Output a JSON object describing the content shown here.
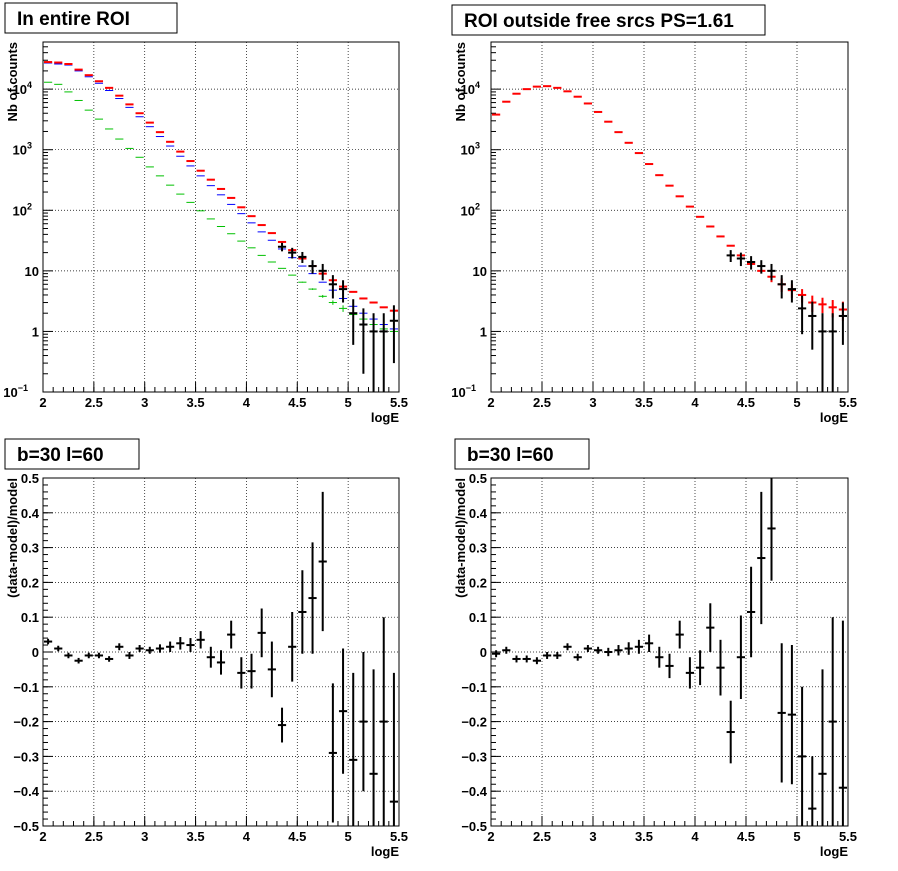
{
  "chart_data": [
    {
      "id": "pad1",
      "type": "scatter",
      "title": "In entire ROI",
      "xlabel": "logE",
      "ylabel": "Nb of counts",
      "xlim": [
        2,
        5.5
      ],
      "ylim": [
        0.1,
        60000
      ],
      "yscale": "log",
      "grid": true,
      "x_ticks": [
        "2",
        "2.5",
        "3",
        "3.5",
        "4",
        "4.5",
        "5",
        "5.5"
      ],
      "y_ticks": [
        {
          "value": 0.1,
          "mantissa": "10",
          "exp": "−1"
        },
        {
          "value": 1,
          "mantissa": "1",
          "exp": ""
        },
        {
          "value": 10,
          "mantissa": "10",
          "exp": ""
        },
        {
          "value": 100,
          "mantissa": "10",
          "exp": "2"
        },
        {
          "value": 1000,
          "mantissa": "10",
          "exp": "3"
        },
        {
          "value": 10000,
          "mantissa": "10",
          "exp": "4"
        }
      ],
      "series": [
        {
          "color": "#00c000",
          "x": [
            2.05,
            2.15,
            2.25,
            2.35,
            2.45,
            2.55,
            2.65,
            2.75,
            2.85,
            2.95,
            3.05,
            3.15,
            3.25,
            3.35,
            3.45,
            3.55,
            3.65,
            3.75,
            3.85,
            3.95,
            4.05,
            4.15,
            4.25,
            4.35,
            4.45,
            4.55,
            4.65,
            4.75,
            4.85,
            4.95,
            5.05,
            5.15,
            5.25,
            5.35,
            5.45
          ],
          "y": [
            13000,
            12000,
            9000,
            6500,
            4500,
            3200,
            2200,
            1500,
            1050,
            750,
            520,
            370,
            260,
            185,
            135,
            98,
            72,
            54,
            41,
            31,
            24,
            18,
            14,
            11,
            8.5,
            6.5,
            5,
            3.8,
            3,
            2.4,
            1.9,
            1.6,
            1.3,
            1.1,
            1.0
          ],
          "err": [
            0,
            0,
            0,
            0,
            0,
            0,
            0,
            0,
            0,
            0,
            0,
            0,
            0,
            0,
            0,
            0,
            0,
            0,
            0,
            0,
            0,
            0,
            0,
            0,
            0.1,
            0.12,
            0.15,
            0.2,
            0.25,
            0.3,
            0.35,
            0.4,
            0.45,
            0.5,
            0.55
          ]
        },
        {
          "color": "#0000ff",
          "x": [
            2.05,
            2.15,
            2.25,
            2.35,
            2.45,
            2.55,
            2.65,
            2.75,
            2.85,
            2.95,
            3.05,
            3.15,
            3.25,
            3.35,
            3.45,
            3.55,
            3.65,
            3.75,
            3.85,
            3.95,
            4.05,
            4.15,
            4.25,
            4.35,
            4.45,
            4.55,
            4.65,
            4.75,
            4.85,
            4.95,
            5.05,
            5.15,
            5.25,
            5.35,
            5.45
          ],
          "y": [
            27000,
            26000,
            25000,
            20000,
            16000,
            12500,
            9500,
            7000,
            5000,
            3500,
            2400,
            1650,
            1150,
            780,
            540,
            370,
            255,
            180,
            125,
            88,
            62,
            44,
            32,
            23,
            16.5,
            12,
            9,
            6.5,
            4.8,
            3.5,
            2.6,
            2.0,
            1.6,
            1.3,
            1.1
          ],
          "err": [
            0,
            0,
            0,
            0,
            0,
            0,
            0,
            0,
            0,
            0,
            0,
            0,
            0,
            0,
            0,
            0,
            0,
            0,
            0,
            0,
            0,
            0,
            0,
            0,
            0,
            0,
            0,
            0,
            0,
            0.15,
            0.2,
            0.25,
            0.3,
            0.35,
            0.4
          ]
        },
        {
          "color": "#ff0000",
          "x": [
            2.05,
            2.15,
            2.25,
            2.35,
            2.45,
            2.55,
            2.65,
            2.75,
            2.85,
            2.95,
            3.05,
            3.15,
            3.25,
            3.35,
            3.45,
            3.55,
            3.65,
            3.75,
            3.85,
            3.95,
            4.05,
            4.15,
            4.25,
            4.35,
            4.45,
            4.55,
            4.65,
            4.75,
            4.85,
            4.95,
            5.05,
            5.15,
            5.25,
            5.35,
            5.45
          ],
          "y": [
            28000,
            27500,
            26000,
            21000,
            17000,
            13500,
            10500,
            7800,
            5600,
            4000,
            2800,
            1950,
            1350,
            930,
            650,
            450,
            320,
            225,
            160,
            112,
            80,
            57,
            42,
            30,
            22,
            16,
            12,
            9,
            7,
            5.5,
            4.5,
            3.5,
            3,
            2.5,
            2.2
          ],
          "err": [
            0,
            0,
            0,
            0,
            0,
            0,
            0,
            0,
            0,
            0,
            0,
            0,
            0,
            0,
            0,
            0,
            0,
            0,
            0,
            0,
            0,
            0,
            0,
            0,
            0,
            0,
            0,
            0,
            0,
            0,
            0,
            0,
            0,
            0,
            0
          ]
        },
        {
          "color": "#000000",
          "x": [
            4.35,
            4.45,
            4.55,
            4.65,
            4.75,
            4.85,
            4.95,
            5.05,
            5.15,
            5.25,
            5.35,
            5.45
          ],
          "y": [
            25,
            20,
            17,
            12,
            10,
            6,
            5,
            2,
            1.3,
            1,
            1,
            1.5
          ],
          "err": [
            4,
            4,
            3.5,
            3,
            3,
            2.5,
            2,
            1.4,
            1.1,
            1,
            1,
            1.2
          ]
        }
      ]
    },
    {
      "id": "pad2",
      "type": "scatter",
      "title": "ROI outside free srcs PS=1.61",
      "xlabel": "logE",
      "ylabel": "Nb of counts",
      "xlim": [
        2,
        5.5
      ],
      "ylim": [
        0.1,
        60000
      ],
      "yscale": "log",
      "grid": true,
      "x_ticks": [
        "2",
        "2.5",
        "3",
        "3.5",
        "4",
        "4.5",
        "5",
        "5.5"
      ],
      "y_ticks": [
        {
          "value": 0.1,
          "mantissa": "10",
          "exp": "−1"
        },
        {
          "value": 1,
          "mantissa": "1",
          "exp": ""
        },
        {
          "value": 10,
          "mantissa": "10",
          "exp": ""
        },
        {
          "value": 100,
          "mantissa": "10",
          "exp": "2"
        },
        {
          "value": 1000,
          "mantissa": "10",
          "exp": "3"
        },
        {
          "value": 10000,
          "mantissa": "10",
          "exp": "4"
        }
      ],
      "series": [
        {
          "color": "#ff0000",
          "x": [
            2.05,
            2.15,
            2.25,
            2.35,
            2.45,
            2.55,
            2.65,
            2.75,
            2.85,
            2.95,
            3.05,
            3.15,
            3.25,
            3.35,
            3.45,
            3.55,
            3.65,
            3.75,
            3.85,
            3.95,
            4.05,
            4.15,
            4.25,
            4.35,
            4.45,
            4.55,
            4.65,
            4.75,
            4.85,
            4.95,
            5.05,
            5.15,
            5.25,
            5.35,
            5.45
          ],
          "y": [
            3800,
            6200,
            8400,
            10000,
            11000,
            11200,
            10500,
            9200,
            7500,
            5800,
            4200,
            2900,
            1950,
            1300,
            880,
            580,
            380,
            255,
            170,
            115,
            78,
            54,
            37,
            26,
            18,
            13,
            10,
            8,
            6,
            4.8,
            4,
            3,
            2.8,
            2.5,
            2.3
          ],
          "err": [
            0,
            0,
            0,
            0,
            0,
            0,
            0,
            0,
            0,
            0,
            0,
            0,
            0,
            0,
            0,
            0,
            0,
            0,
            0,
            0,
            0,
            0,
            0,
            0,
            0,
            0,
            0,
            1.5,
            1.5,
            1.2,
            1,
            0.9,
            0.8,
            0.8,
            0.8
          ]
        },
        {
          "color": "#000000",
          "x": [
            4.35,
            4.45,
            4.55,
            4.65,
            4.75,
            4.85,
            4.95,
            5.05,
            5.15,
            5.25,
            5.35,
            5.45
          ],
          "y": [
            18,
            16,
            14,
            12,
            10,
            6,
            5,
            2.4,
            1.8,
            1,
            1,
            1.8
          ],
          "err": [
            4,
            4,
            3.5,
            3,
            3,
            2.5,
            2,
            1.5,
            1.3,
            1,
            1,
            1.2
          ]
        }
      ]
    },
    {
      "id": "pad3",
      "type": "scatter",
      "title": "b=30 l=60",
      "xlabel": "logE",
      "ylabel": "(data-model)/model",
      "xlim": [
        2,
        5.5
      ],
      "ylim": [
        -0.5,
        0.5
      ],
      "yscale": "linear",
      "grid": true,
      "x_ticks": [
        "2",
        "2.5",
        "3",
        "3.5",
        "4",
        "4.5",
        "5",
        "5.5"
      ],
      "y_ticks": [
        "−0.5",
        "−0.4",
        "−0.3",
        "−0.2",
        "−0.1",
        "0",
        "0.1",
        "0.2",
        "0.3",
        "0.4",
        "0.5"
      ],
      "series": [
        {
          "color": "#000000",
          "x": [
            2.05,
            2.15,
            2.25,
            2.35,
            2.45,
            2.55,
            2.65,
            2.75,
            2.85,
            2.95,
            3.05,
            3.15,
            3.25,
            3.35,
            3.45,
            3.55,
            3.65,
            3.75,
            3.85,
            3.95,
            4.05,
            4.15,
            4.25,
            4.35,
            4.45,
            4.55,
            4.65,
            4.75,
            4.85,
            4.95,
            5.05,
            5.15,
            5.25,
            5.35,
            5.45
          ],
          "y": [
            0.03,
            0.01,
            -0.01,
            -0.025,
            -0.01,
            -0.01,
            -0.02,
            0.015,
            -0.01,
            0.01,
            0.005,
            0.01,
            0.015,
            0.025,
            0.02,
            0.035,
            -0.015,
            -0.03,
            0.05,
            -0.06,
            -0.055,
            0.055,
            -0.05,
            -0.21,
            0.015,
            0.115,
            0.155,
            0.26,
            -0.29,
            -0.17,
            -0.31,
            -0.2,
            -0.35,
            -0.2,
            -0.43
          ],
          "err": [
            0.008,
            0.008,
            0.008,
            0.008,
            0.008,
            0.008,
            0.008,
            0.01,
            0.01,
            0.01,
            0.01,
            0.012,
            0.015,
            0.018,
            0.02,
            0.025,
            0.03,
            0.035,
            0.04,
            0.045,
            0.05,
            0.07,
            0.08,
            0.05,
            0.1,
            0.12,
            0.16,
            0.2,
            0.2,
            0.18,
            0.25,
            0.2,
            0.3,
            0.3,
            0.37
          ]
        }
      ]
    },
    {
      "id": "pad4",
      "type": "scatter",
      "title": "b=30 l=60",
      "xlabel": "logE",
      "ylabel": "(data-model)/model",
      "xlim": [
        2,
        5.5
      ],
      "ylim": [
        -0.5,
        0.5
      ],
      "yscale": "linear",
      "grid": true,
      "x_ticks": [
        "2",
        "2.5",
        "3",
        "3.5",
        "4",
        "4.5",
        "5",
        "5.5"
      ],
      "y_ticks": [
        "−0.5",
        "−0.4",
        "−0.3",
        "−0.2",
        "−0.1",
        "0",
        "0.1",
        "0.2",
        "0.3",
        "0.4",
        "0.5"
      ],
      "series": [
        {
          "color": "#000000",
          "x": [
            2.05,
            2.15,
            2.25,
            2.35,
            2.45,
            2.55,
            2.65,
            2.75,
            2.85,
            2.95,
            3.05,
            3.15,
            3.25,
            3.35,
            3.45,
            3.55,
            3.65,
            3.75,
            3.85,
            3.95,
            4.05,
            4.15,
            4.25,
            4.35,
            4.45,
            4.55,
            4.65,
            4.75,
            4.85,
            4.95,
            5.05,
            5.15,
            5.25,
            5.35,
            5.45
          ],
          "y": [
            -0.005,
            0.005,
            -0.02,
            -0.02,
            -0.025,
            -0.01,
            -0.01,
            0.015,
            -0.015,
            0.01,
            0.005,
            0.0,
            0.005,
            0.01,
            0.015,
            0.025,
            -0.015,
            -0.04,
            0.05,
            -0.06,
            -0.045,
            0.07,
            -0.045,
            -0.23,
            -0.015,
            0.115,
            0.27,
            0.355,
            -0.175,
            -0.18,
            -0.3,
            -0.45,
            -0.35,
            -0.2,
            -0.39
          ],
          "err": [
            0.01,
            0.01,
            0.01,
            0.01,
            0.01,
            0.01,
            0.01,
            0.01,
            0.01,
            0.01,
            0.01,
            0.012,
            0.015,
            0.018,
            0.02,
            0.025,
            0.03,
            0.035,
            0.04,
            0.045,
            0.05,
            0.07,
            0.08,
            0.09,
            0.12,
            0.13,
            0.19,
            0.15,
            0.2,
            0.2,
            0.2,
            0.15,
            0.3,
            0.3,
            0.48
          ]
        }
      ]
    }
  ]
}
